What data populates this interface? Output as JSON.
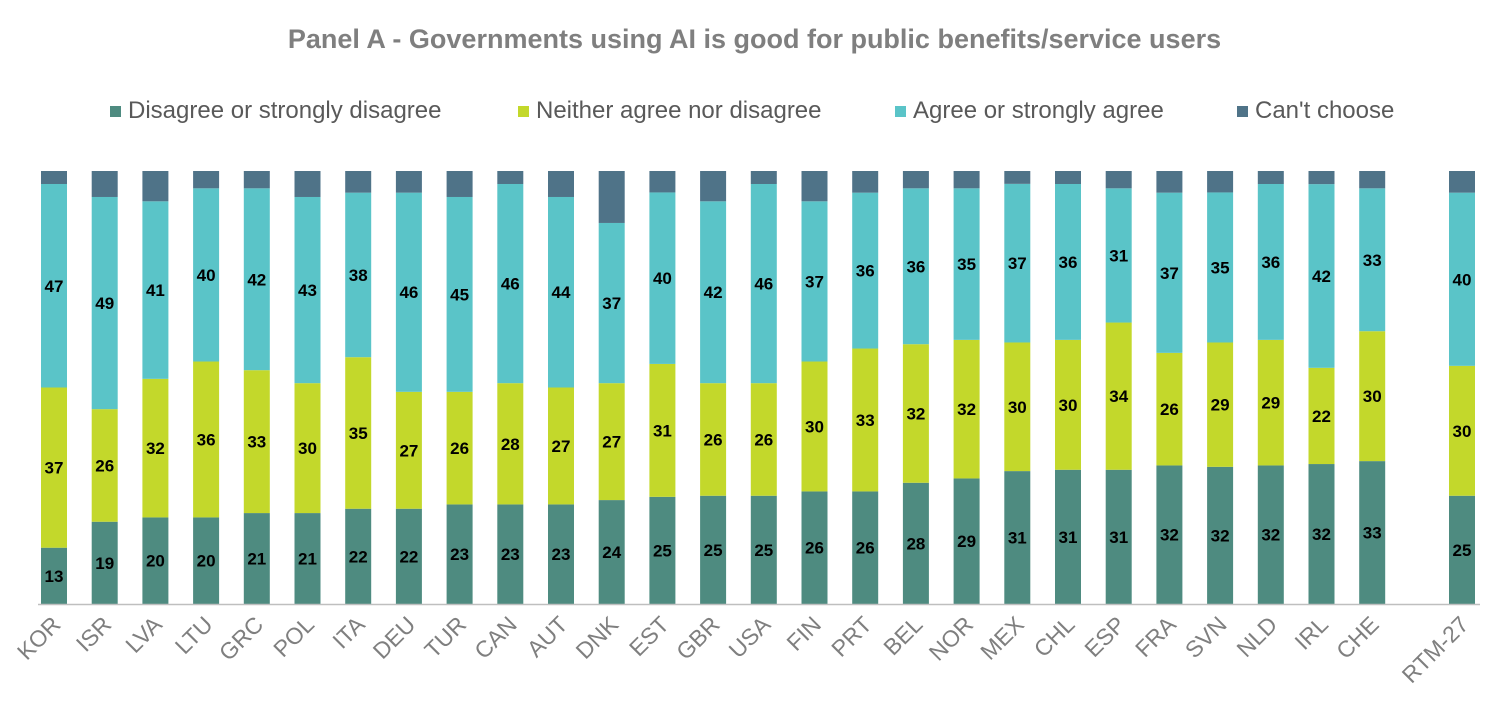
{
  "chart_data": {
    "type": "bar",
    "stacked": true,
    "title": "Panel A - Governments using AI is good for public benefits/service users",
    "xlabel": "",
    "ylabel": "",
    "ylim": [
      0,
      100
    ],
    "grid": false,
    "legend_position": "top",
    "categories": [
      "KOR",
      "ISR",
      "LVA",
      "LTU",
      "GRC",
      "POL",
      "ITA",
      "DEU",
      "TUR",
      "CAN",
      "AUT",
      "DNK",
      "EST",
      "GBR",
      "USA",
      "FIN",
      "PRT",
      "BEL",
      "NOR",
      "MEX",
      "CHL",
      "ESP",
      "FRA",
      "SVN",
      "NLD",
      "IRL",
      "CHE",
      "RTM-27"
    ],
    "series": [
      {
        "name": "Disagree or strongly disagree",
        "color": "#4e8b80",
        "values": [
          13,
          19,
          20,
          20,
          21,
          21,
          22,
          22,
          23,
          23,
          23,
          24,
          25,
          25,
          25,
          26,
          26,
          28,
          29,
          31,
          31,
          31,
          32,
          32,
          32,
          32,
          33,
          25
        ]
      },
      {
        "name": "Neither agree nor disagree",
        "color": "#c3d82b",
        "values": [
          37,
          26,
          32,
          36,
          33,
          30,
          35,
          27,
          26,
          28,
          27,
          27,
          31,
          26,
          26,
          30,
          33,
          32,
          32,
          30,
          30,
          34,
          26,
          29,
          29,
          22,
          30,
          30
        ]
      },
      {
        "name": "Agree or strongly agree",
        "color": "#5ac4c8",
        "values": [
          47,
          49,
          41,
          40,
          42,
          43,
          38,
          46,
          45,
          46,
          44,
          37,
          40,
          42,
          46,
          37,
          36,
          36,
          35,
          37,
          36,
          31,
          37,
          35,
          36,
          42,
          33,
          40
        ]
      },
      {
        "name": "Can't choose",
        "color": "#4f7388",
        "values": [
          3,
          6,
          7,
          4,
          4,
          6,
          5,
          5,
          6,
          3,
          6,
          12,
          5,
          7,
          3,
          7,
          5,
          4,
          4,
          3,
          3,
          4,
          5,
          5,
          3,
          3,
          4,
          5
        ]
      }
    ]
  }
}
